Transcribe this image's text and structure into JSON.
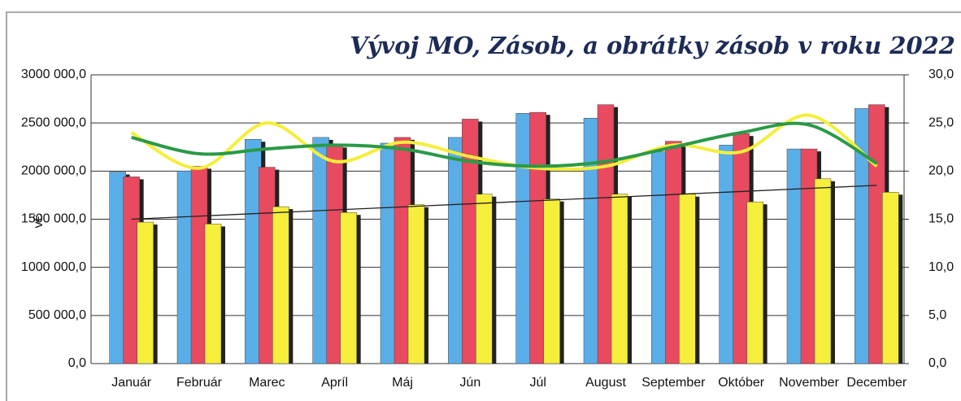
{
  "chart_data": {
    "type": "bar",
    "title": "Vývoj MO, Zásob, a obrátky zásob v roku 2022",
    "ylabel": "v€",
    "categories": [
      "Január",
      "Február",
      "Marec",
      "Apríl",
      "Máj",
      "Jún",
      "Júl",
      "August",
      "September",
      "Október",
      "November",
      "December"
    ],
    "series": [
      {
        "color": "#5aaee8",
        "values": [
          1990000,
          2000000,
          2330000,
          2350000,
          2290000,
          2350000,
          2600000,
          2550000,
          2200000,
          2270000,
          2230000,
          2650000
        ]
      },
      {
        "color": "#e84a5f",
        "values": [
          1940000,
          2050000,
          2040000,
          2270000,
          2350000,
          2540000,
          2610000,
          2690000,
          2310000,
          2390000,
          2230000,
          2690000
        ]
      },
      {
        "color": "#f5ee3a",
        "values": [
          1470000,
          1450000,
          1630000,
          1570000,
          1650000,
          1760000,
          1710000,
          1760000,
          1760000,
          1680000,
          1920000,
          1780000
        ]
      },
      {
        "type": "line",
        "color": "#222222",
        "values": [
          1500000,
          1532000,
          1564000,
          1596000,
          1628000,
          1660000,
          1692000,
          1724000,
          1756000,
          1788000,
          1820000,
          1852000
        ]
      },
      {
        "type": "line",
        "axis": "y2",
        "color": "#f5ee3a",
        "values": [
          24,
          20.3,
          25,
          21,
          23,
          21.5,
          20.3,
          20.5,
          22.7,
          22,
          25.8,
          20.5
        ]
      },
      {
        "type": "line",
        "axis": "y2",
        "color": "#2a9a48",
        "values": [
          23.5,
          21.8,
          22.3,
          22.7,
          22.3,
          21,
          20.5,
          21,
          22.5,
          24,
          24.8,
          20.8
        ]
      }
    ],
    "ylim": [
      0,
      3000000
    ],
    "yticks": [
      {
        "value": 0,
        "label": "0,0"
      },
      {
        "value": 500000,
        "label": "500 000,0"
      },
      {
        "value": 1000000,
        "label": "1000 000,0"
      },
      {
        "value": 1500000,
        "label": "1500 000,0"
      },
      {
        "value": 2000000,
        "label": "2000 000,0"
      },
      {
        "value": 2500000,
        "label": "2500 000,0"
      },
      {
        "value": 3000000,
        "label": "3000 000,0"
      }
    ],
    "y2lim": [
      0,
      30
    ],
    "y2ticks": [
      {
        "value": 0,
        "label": "0,0"
      },
      {
        "value": 5,
        "label": "5,0"
      },
      {
        "value": 10,
        "label": "10,0"
      },
      {
        "value": 15,
        "label": "15,0"
      },
      {
        "value": 20,
        "label": "20,0"
      },
      {
        "value": 25,
        "label": "25,0"
      },
      {
        "value": 30,
        "label": "30,0"
      }
    ],
    "grid": true
  }
}
